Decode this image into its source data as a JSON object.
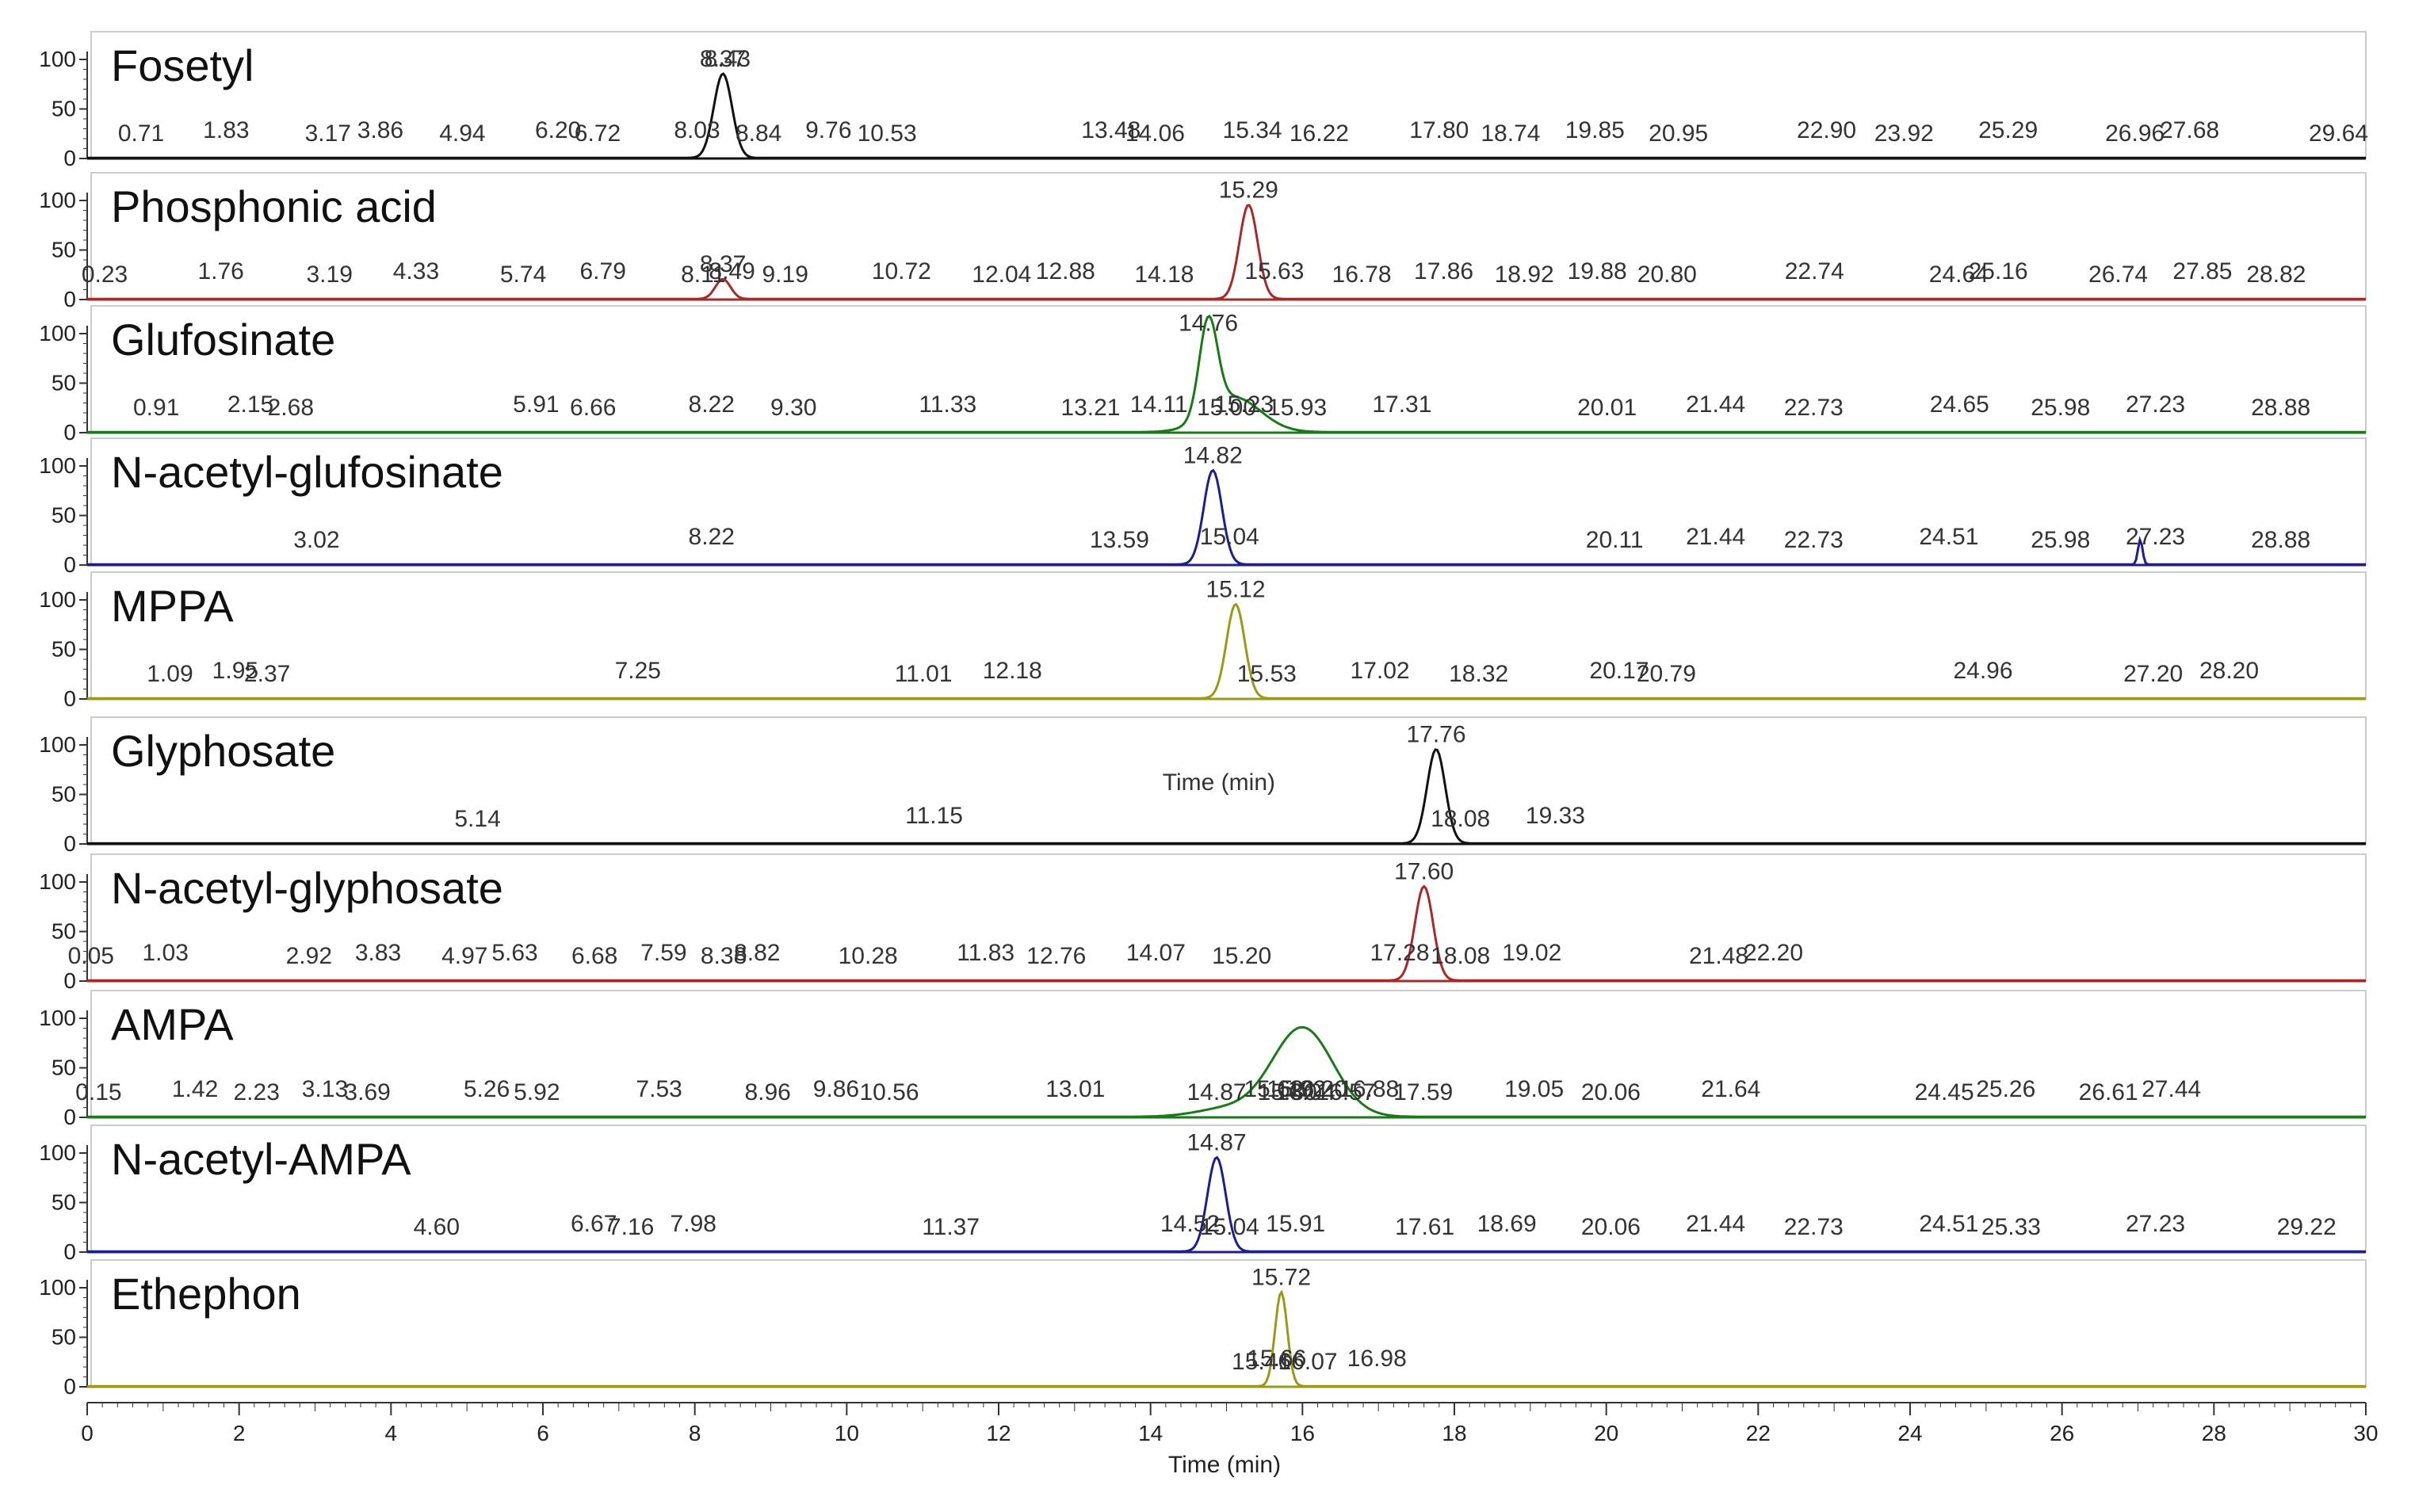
{
  "chart_data": {
    "type": "line",
    "xlabel": "Time (min)",
    "xlim": [
      0,
      30
    ],
    "ylim": [
      0,
      100
    ],
    "x_ticks": [
      0,
      2,
      4,
      6,
      8,
      10,
      12,
      14,
      16,
      18,
      20,
      22,
      24,
      26,
      28,
      30
    ],
    "y_ticks": [
      0,
      50,
      100
    ],
    "panels": [
      {
        "name": "Fosetyl",
        "color": "#111111",
        "peaks": [
          {
            "rt": 8.37,
            "height": 85,
            "width": 0.12
          }
        ],
        "labels": [
          0.71,
          1.83,
          3.17,
          3.86,
          4.94,
          6.2,
          6.72,
          8.03,
          8.84,
          9.76,
          10.53,
          13.48,
          14.06,
          15.34,
          16.22,
          17.8,
          18.74,
          19.85,
          20.95,
          22.9,
          23.92,
          25.29,
          26.96,
          27.68,
          29.64
        ],
        "top_labels": [
          "8.37",
          "8.43"
        ]
      },
      {
        "name": "Phosphonic acid",
        "color": "#a52a2a",
        "peaks": [
          {
            "rt": 8.37,
            "height": 20,
            "width": 0.1
          },
          {
            "rt": 15.29,
            "height": 95,
            "width": 0.12
          }
        ],
        "labels": [
          0.23,
          1.76,
          3.19,
          4.33,
          5.74,
          6.79,
          8.11,
          8.49,
          9.19,
          10.72,
          12.04,
          12.88,
          14.18,
          15.63,
          16.78,
          17.86,
          18.92,
          19.88,
          20.8,
          22.74,
          24.64,
          25.16,
          26.74,
          27.85,
          28.82
        ],
        "top_labels": [
          "15.29",
          "8.37"
        ]
      },
      {
        "name": "Glufosinate",
        "color": "#1a7a1a",
        "peaks": [
          {
            "rt": 14.76,
            "height": 95,
            "width": 0.12
          },
          {
            "rt": 15.1,
            "height": 35,
            "width": 0.35
          }
        ],
        "labels": [
          0.91,
          2.15,
          2.68,
          5.91,
          6.66,
          8.22,
          9.3,
          11.33,
          13.21,
          14.11,
          15.0,
          15.23,
          15.93,
          17.31,
          20.01,
          21.44,
          22.73,
          24.65,
          25.98,
          27.23,
          28.88
        ],
        "top_labels": [
          "14.76"
        ]
      },
      {
        "name": "N-acetyl-glufosinate",
        "color": "#1f1f8c",
        "peaks": [
          {
            "rt": 14.82,
            "height": 95,
            "width": 0.12
          },
          {
            "rt": 27.03,
            "height": 25,
            "width": 0.03
          }
        ],
        "labels": [
          3.02,
          8.22,
          13.59,
          15.04,
          20.11,
          21.44,
          22.73,
          24.51,
          25.98,
          27.23,
          28.88
        ],
        "top_labels": [
          "14.82"
        ]
      },
      {
        "name": "MPPA",
        "color": "#9a9a1a",
        "peaks": [
          {
            "rt": 15.12,
            "height": 95,
            "width": 0.12
          }
        ],
        "labels": [
          1.09,
          1.95,
          2.37,
          7.25,
          11.01,
          12.18,
          15.53,
          17.02,
          18.32,
          20.17,
          20.79,
          24.96,
          27.2,
          28.2
        ],
        "top_labels": [
          "15.12"
        ]
      },
      {
        "name": "Glyphosate",
        "color": "#111111",
        "peaks": [
          {
            "rt": 17.76,
            "height": 95,
            "width": 0.12
          }
        ],
        "labels": [
          5.14,
          11.15,
          18.08,
          19.33
        ],
        "top_labels": [
          "17.76"
        ],
        "annotation": "Time (min)"
      },
      {
        "name": "N-acetyl-glyphosate",
        "color": "#a52a2a",
        "peaks": [
          {
            "rt": 17.6,
            "height": 95,
            "width": 0.12
          }
        ],
        "labels": [
          0.05,
          1.03,
          2.92,
          3.83,
          4.97,
          5.63,
          6.68,
          7.59,
          8.38,
          8.82,
          10.28,
          11.83,
          12.76,
          14.07,
          15.2,
          17.28,
          18.08,
          19.02,
          21.48,
          22.2
        ],
        "top_labels": [
          "17.60"
        ]
      },
      {
        "name": "AMPA",
        "color": "#1a7a1a",
        "peaks": [
          {
            "rt": 16.0,
            "height": 90,
            "width": 0.4
          },
          {
            "rt": 15.0,
            "height": 8,
            "width": 0.4
          }
        ],
        "labels": [
          0.15,
          1.42,
          2.23,
          3.13,
          3.69,
          5.26,
          5.92,
          7.53,
          8.96,
          9.86,
          10.56,
          13.01,
          14.87,
          15.62,
          15.8,
          15.92,
          16.04,
          16.2,
          16.57,
          16.88,
          17.59,
          19.05,
          20.06,
          21.64,
          24.45,
          25.26,
          26.61,
          27.44
        ],
        "top_labels": []
      },
      {
        "name": "N-acetyl-AMPA",
        "color": "#1f1f8c",
        "peaks": [
          {
            "rt": 14.87,
            "height": 95,
            "width": 0.12
          }
        ],
        "labels": [
          4.6,
          6.67,
          7.16,
          7.98,
          11.37,
          14.52,
          15.04,
          15.91,
          17.61,
          18.69,
          20.06,
          21.44,
          22.73,
          24.51,
          25.33,
          27.23,
          29.22
        ],
        "top_labels": [
          "14.87"
        ]
      },
      {
        "name": "Ethephon",
        "color": "#9a9a1a",
        "peaks": [
          {
            "rt": 15.72,
            "height": 95,
            "width": 0.08
          }
        ],
        "labels": [
          15.46,
          15.66,
          16.07,
          16.98
        ],
        "top_labels": [
          "15.72"
        ]
      }
    ]
  }
}
